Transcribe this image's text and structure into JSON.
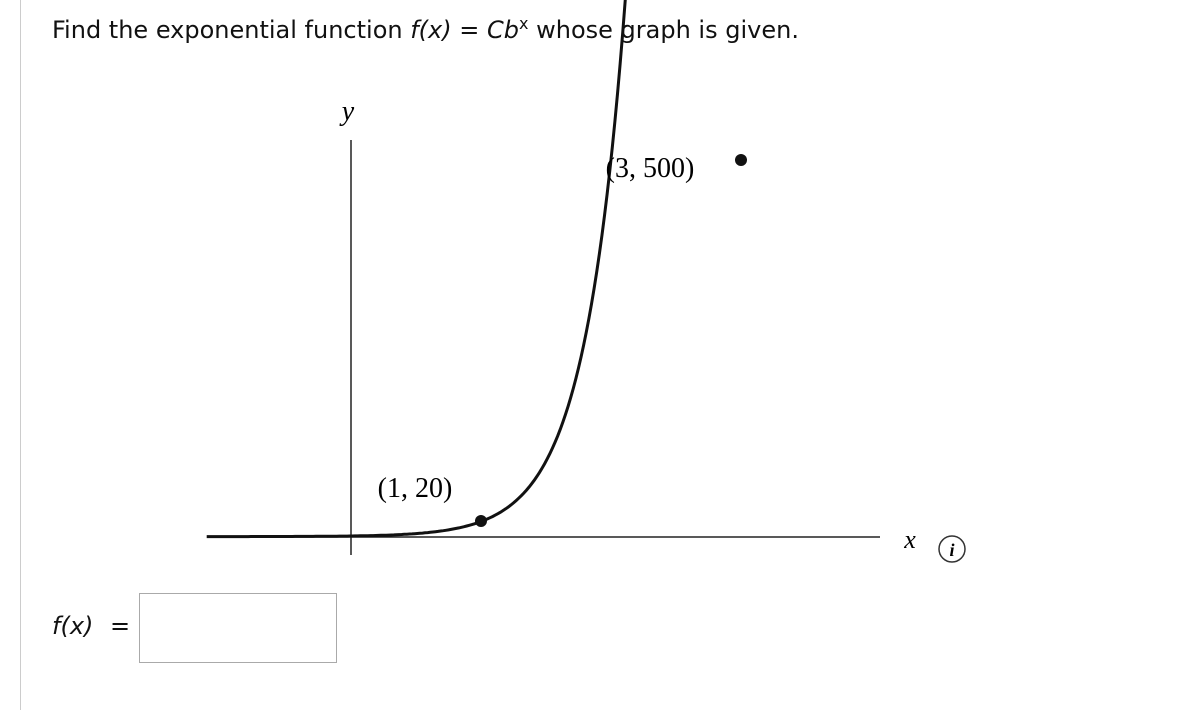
{
  "question": {
    "prefix": "Find the exponential function",
    "function": "f(x)",
    "equals": "=",
    "form_base": "Cb",
    "form_exponent": "x",
    "suffix": "whose graph is given."
  },
  "graph": {
    "y_axis_label": "y",
    "x_axis_label": "x",
    "point_1_label": "(1, 20)",
    "point_2_label": "(3, 500)",
    "info_icon": "i"
  },
  "answer": {
    "label": "f(x)",
    "equals": "="
  }
}
